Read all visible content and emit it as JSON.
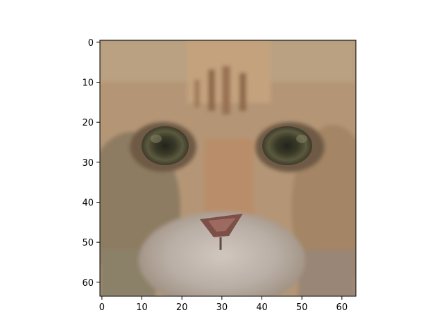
{
  "figure": {
    "background": "#ffffff"
  },
  "image": {
    "subject": "cat-face",
    "pixel_grid": [
      64,
      64
    ],
    "description_colors": {
      "fur_light": "#c9a784",
      "fur_mid": "#a98263",
      "fur_dark": "#6e5a45",
      "nose": "#7c4f47",
      "eye": "#5b5a3e",
      "pupil": "#23231b",
      "muzzle": "#b9aea5"
    }
  },
  "chart_data": {
    "type": "image",
    "xlim": [
      -0.5,
      63.5
    ],
    "ylim": [
      63.5,
      -0.5
    ],
    "x_ticks": [
      0,
      10,
      20,
      30,
      40,
      50,
      60
    ],
    "y_ticks": [
      0,
      10,
      20,
      30,
      40,
      50,
      60
    ],
    "x_tick_labels": [
      "0",
      "10",
      "20",
      "30",
      "40",
      "50",
      "60"
    ],
    "y_tick_labels": [
      "0",
      "10",
      "20",
      "30",
      "40",
      "50",
      "60"
    ],
    "title": "",
    "xlabel": "",
    "ylabel": "",
    "grid": false
  }
}
